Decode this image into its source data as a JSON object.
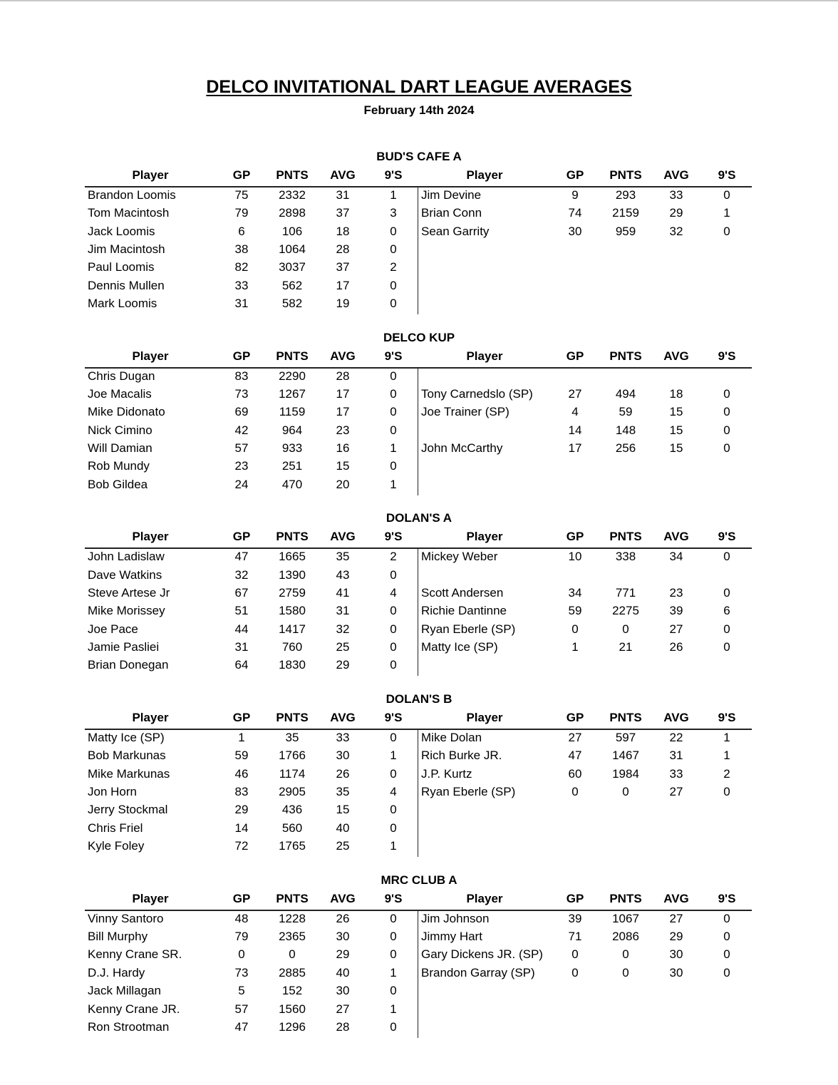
{
  "title": "DELCO INVITATIONAL DART LEAGUE AVERAGES",
  "subtitle": "February 14th 2024",
  "columns": [
    "Player",
    "GP",
    "PNTS",
    "AVG",
    "9'S"
  ],
  "teams": [
    {
      "name": "BUD'S CAFE A",
      "left": [
        [
          "Brandon Loomis",
          "75",
          "2332",
          "31",
          "1"
        ],
        [
          "Tom Macintosh",
          "79",
          "2898",
          "37",
          "3"
        ],
        [
          "Jack Loomis",
          "6",
          "106",
          "18",
          "0"
        ],
        [
          "Jim Macintosh",
          "38",
          "1064",
          "28",
          "0"
        ],
        [
          "Paul Loomis",
          "82",
          "3037",
          "37",
          "2"
        ],
        [
          "Dennis Mullen",
          "33",
          "562",
          "17",
          "0"
        ],
        [
          "Mark Loomis",
          "31",
          "582",
          "19",
          "0"
        ]
      ],
      "right": [
        [
          "Jim Devine",
          "9",
          "293",
          "33",
          "0"
        ],
        [
          "Brian Conn",
          "74",
          "2159",
          "29",
          "1"
        ],
        [
          "Sean Garrity",
          "30",
          "959",
          "32",
          "0"
        ],
        [
          "",
          "",
          "",
          "",
          ""
        ],
        [
          "",
          "",
          "",
          "",
          ""
        ],
        [
          "",
          "",
          "",
          "",
          ""
        ],
        [
          "",
          "",
          "",
          "",
          ""
        ]
      ]
    },
    {
      "name": "DELCO KUP",
      "left": [
        [
          "Chris Dugan",
          "83",
          "2290",
          "28",
          "0"
        ],
        [
          "Joe Macalis",
          "73",
          "1267",
          "17",
          "0"
        ],
        [
          "Mike Didonato",
          "69",
          "1159",
          "17",
          "0"
        ],
        [
          "Nick Cimino",
          "42",
          "964",
          "23",
          "0"
        ],
        [
          "Will Damian",
          "57",
          "933",
          "16",
          "1"
        ],
        [
          "Rob Mundy",
          "23",
          "251",
          "15",
          "0"
        ],
        [
          "Bob Gildea",
          "24",
          "470",
          "20",
          "1"
        ]
      ],
      "right": [
        [
          "",
          "",
          "",
          "",
          ""
        ],
        [
          "Tony Carnedslo (SP)",
          "27",
          "494",
          "18",
          "0"
        ],
        [
          "Joe Trainer (SP)",
          "4",
          "59",
          "15",
          "0"
        ],
        [
          "",
          "14",
          "148",
          "15",
          "0"
        ],
        [
          "John McCarthy",
          "17",
          "256",
          "15",
          "0"
        ],
        [
          "",
          "",
          "",
          "",
          ""
        ],
        [
          "",
          "",
          "",
          "",
          ""
        ]
      ]
    },
    {
      "name": "DOLAN'S A",
      "left": [
        [
          "John Ladislaw",
          "47",
          "1665",
          "35",
          "2"
        ],
        [
          "Dave Watkins",
          "32",
          "1390",
          "43",
          "0"
        ],
        [
          "Steve Artese Jr",
          "67",
          "2759",
          "41",
          "4"
        ],
        [
          "Mike Morissey",
          "51",
          "1580",
          "31",
          "0"
        ],
        [
          "Joe Pace",
          "44",
          "1417",
          "32",
          "0"
        ],
        [
          "Jamie Pasliei",
          "31",
          "760",
          "25",
          "0"
        ],
        [
          "Brian Donegan",
          "64",
          "1830",
          "29",
          "0"
        ]
      ],
      "right": [
        [
          "Mickey Weber",
          "10",
          "338",
          "34",
          "0"
        ],
        [
          "",
          "",
          "",
          "",
          ""
        ],
        [
          "Scott Andersen",
          "34",
          "771",
          "23",
          "0"
        ],
        [
          "Richie Dantinne",
          "59",
          "2275",
          "39",
          "6"
        ],
        [
          "Ryan Eberle (SP)",
          "0",
          "0",
          "27",
          "0"
        ],
        [
          "Matty Ice (SP)",
          "1",
          "21",
          "26",
          "0"
        ],
        [
          "",
          "",
          "",
          "",
          ""
        ]
      ]
    },
    {
      "name": "DOLAN'S B",
      "left": [
        [
          "Matty Ice (SP)",
          "1",
          "35",
          "33",
          "0"
        ],
        [
          "Bob Markunas",
          "59",
          "1766",
          "30",
          "1"
        ],
        [
          "Mike Markunas",
          "46",
          "1174",
          "26",
          "0"
        ],
        [
          "Jon Horn",
          "83",
          "2905",
          "35",
          "4"
        ],
        [
          "Jerry Stockmal",
          "29",
          "436",
          "15",
          "0"
        ],
        [
          "Chris Friel",
          "14",
          "560",
          "40",
          "0"
        ],
        [
          "Kyle Foley",
          "72",
          "1765",
          "25",
          "1"
        ]
      ],
      "right": [
        [
          "Mike Dolan",
          "27",
          "597",
          "22",
          "1"
        ],
        [
          "Rich Burke JR.",
          "47",
          "1467",
          "31",
          "1"
        ],
        [
          "J.P. Kurtz",
          "60",
          "1984",
          "33",
          "2"
        ],
        [
          "Ryan Eberle (SP)",
          "0",
          "0",
          "27",
          "0"
        ],
        [
          "",
          "",
          "",
          "",
          ""
        ],
        [
          "",
          "",
          "",
          "",
          ""
        ],
        [
          "",
          "",
          "",
          "",
          ""
        ]
      ]
    },
    {
      "name": "MRC CLUB A",
      "left": [
        [
          "Vinny Santoro",
          "48",
          "1228",
          "26",
          "0"
        ],
        [
          "Bill Murphy",
          "79",
          "2365",
          "30",
          "0"
        ],
        [
          "Kenny Crane SR.",
          "0",
          "0",
          "29",
          "0"
        ],
        [
          "D.J. Hardy",
          "73",
          "2885",
          "40",
          "1"
        ],
        [
          "Jack Millagan",
          "5",
          "152",
          "30",
          "0"
        ],
        [
          "Kenny Crane JR.",
          "57",
          "1560",
          "27",
          "1"
        ],
        [
          "Ron Strootman",
          "47",
          "1296",
          "28",
          "0"
        ]
      ],
      "right": [
        [
          "Jim Johnson",
          "39",
          "1067",
          "27",
          "0"
        ],
        [
          "Jimmy Hart",
          "71",
          "2086",
          "29",
          "0"
        ],
        [
          "Gary Dickens JR. (SP)",
          "0",
          "0",
          "30",
          "0"
        ],
        [
          "Brandon Garray (SP)",
          "0",
          "0",
          "30",
          "0"
        ],
        [
          "",
          "",
          "",
          "",
          ""
        ],
        [
          "",
          "",
          "",
          "",
          ""
        ],
        [
          "",
          "",
          "",
          "",
          ""
        ]
      ]
    }
  ]
}
